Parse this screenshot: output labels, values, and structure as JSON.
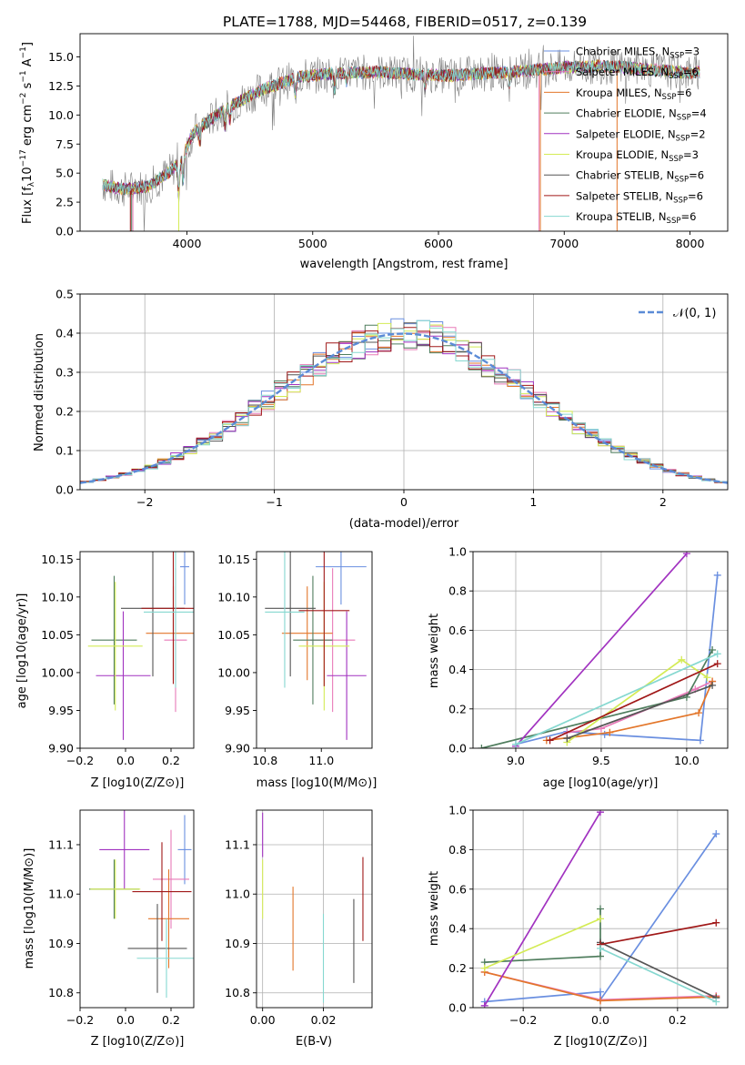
{
  "figure": {
    "title": "PLATE=1788, MJD=54468, FIBERID=0517, z=0.139"
  },
  "legend_models": [
    {
      "name": "Chabrier MILES",
      "nssp": "3",
      "color": "#6a8fe0"
    },
    {
      "name": "Salpeter MILES",
      "nssp": "6",
      "color": "#e87ab8"
    },
    {
      "name": "Kroupa MILES",
      "nssp": "6",
      "color": "#e3762a"
    },
    {
      "name": "Chabrier ELODIE",
      "nssp": "4",
      "color": "#4f7d5d"
    },
    {
      "name": "Salpeter ELODIE",
      "nssp": "2",
      "color": "#a132c0"
    },
    {
      "name": "Kroupa ELODIE",
      "nssp": "3",
      "color": "#d4eb55"
    },
    {
      "name": "Chabrier STELIB",
      "nssp": "6",
      "color": "#555555"
    },
    {
      "name": "Salpeter STELIB",
      "nssp": "6",
      "color": "#a01818"
    },
    {
      "name": "Kroupa STELIB",
      "nssp": "6",
      "color": "#86d8d0"
    }
  ],
  "chart_data": [
    {
      "id": "spectrum",
      "type": "line",
      "xlabel": "wavelength [Angstrom, rest frame]",
      "ylabel": "Flux [f_λ 10^-17 erg cm^-2 s^-1 A^-1]",
      "xlim": [
        3150,
        8300
      ],
      "ylim": [
        0,
        17
      ],
      "xticks": [
        4000,
        5000,
        6000,
        7000,
        8000
      ],
      "yticks": [
        0.0,
        2.5,
        5.0,
        7.5,
        10.0,
        12.5,
        15.0
      ],
      "ytick_labels": [
        "0.0",
        "2.5",
        "5.0",
        "7.5",
        "10.0",
        "12.5",
        "15.0"
      ],
      "grid": false,
      "legend_position": "upper right",
      "continuum": {
        "x": [
          3330,
          3500,
          3700,
          3850,
          3950,
          4050,
          4300,
          4600,
          4900,
          5200,
          5500,
          5800,
          6100,
          6400,
          6700,
          7000,
          7300,
          7600,
          8000,
          8080
        ],
        "y": [
          4.0,
          3.6,
          3.9,
          5.0,
          6.0,
          8.5,
          10.5,
          12.2,
          13.3,
          13.6,
          13.7,
          13.5,
          13.4,
          13.6,
          13.8,
          14.1,
          14.2,
          14.0,
          13.6,
          13.7
        ]
      }
    },
    {
      "id": "residual-histogram",
      "type": "bar",
      "xlabel": "(data-model)/error",
      "ylabel": "Normed distribution",
      "xlim": [
        -2.5,
        2.5
      ],
      "ylim": [
        0,
        0.5
      ],
      "xticks": [
        -2,
        -1,
        0,
        1,
        2
      ],
      "yticks": [
        0.0,
        0.1,
        0.2,
        0.3,
        0.4,
        0.5
      ],
      "ytick_labels": [
        "0.0",
        "0.1",
        "0.2",
        "0.3",
        "0.4",
        "0.5"
      ],
      "grid": true,
      "legend_label": "𝒩(0, 1)",
      "legend_position": "upper right",
      "bin_width": 0.1
    },
    {
      "id": "age-vs-Z",
      "type": "scatter",
      "xlabel": "Z [log10(Z/Z⊙)]",
      "ylabel": "age  [log10(age/yr)]",
      "xlim": [
        -0.2,
        0.3
      ],
      "ylim": [
        9.9,
        10.16
      ],
      "xticks": [
        -0.2,
        0.0,
        0.2
      ],
      "xtick_labels": [
        "−0.2",
        "0.0",
        "0.2"
      ],
      "yticks": [
        9.9,
        9.95,
        10.0,
        10.05,
        10.1,
        10.15
      ],
      "ytick_labels": [
        "9.90",
        "9.95",
        "10.00",
        "10.05",
        "10.10",
        "10.15"
      ],
      "grid": false,
      "points": [
        {
          "x": 0.26,
          "y": 10.14,
          "xerr": 0.02,
          "yerr": 0.05,
          "color": "#6a8fe0"
        },
        {
          "x": 0.22,
          "y": 10.043,
          "xerr": 0.05,
          "yerr": 0.095,
          "color": "#e87ab8"
        },
        {
          "x": 0.21,
          "y": 10.052,
          "xerr": 0.12,
          "yerr": 0.062,
          "color": "#e3762a"
        },
        {
          "x": -0.05,
          "y": 10.043,
          "xerr": 0.1,
          "yerr": 0.085,
          "color": "#4f7d5d"
        },
        {
          "x": -0.01,
          "y": 9.996,
          "xerr": 0.12,
          "yerr": 0.085,
          "color": "#a132c0"
        },
        {
          "x": -0.045,
          "y": 10.035,
          "xerr": 0.12,
          "yerr": 0.085,
          "color": "#d4eb55"
        },
        {
          "x": 0.12,
          "y": 10.085,
          "xerr": 0.14,
          "yerr": 0.09,
          "color": "#555555"
        },
        {
          "x": 0.21,
          "y": 10.085,
          "xerr": 0.14,
          "yerr": 0.1,
          "color": "#a01818"
        },
        {
          "x": 0.22,
          "y": 10.08,
          "xerr": 0.14,
          "yerr": 0.1,
          "color": "#86d8d0"
        }
      ]
    },
    {
      "id": "age-vs-mass",
      "type": "scatter",
      "xlabel": "mass [log10(M/M⊙)]",
      "ylabel": "",
      "xlim": [
        10.77,
        11.18
      ],
      "ylim": [
        9.9,
        10.16
      ],
      "xticks": [
        10.8,
        11.0
      ],
      "xtick_labels": [
        "10.8",
        "11.0"
      ],
      "yticks": [
        9.9,
        9.95,
        10.0,
        10.05,
        10.1,
        10.15
      ],
      "ytick_labels": [
        "9.90",
        "9.95",
        "10.00",
        "10.05",
        "10.10",
        "10.15"
      ],
      "grid": false,
      "points": [
        {
          "x": 11.07,
          "y": 10.14,
          "xerr": 0.09,
          "yerr": 0.05,
          "color": "#6a8fe0"
        },
        {
          "x": 11.04,
          "y": 10.043,
          "xerr": 0.08,
          "yerr": 0.095,
          "color": "#e87ab8"
        },
        {
          "x": 10.95,
          "y": 10.052,
          "xerr": 0.09,
          "yerr": 0.062,
          "color": "#e3762a"
        },
        {
          "x": 10.97,
          "y": 10.043,
          "xerr": 0.07,
          "yerr": 0.085,
          "color": "#4f7d5d"
        },
        {
          "x": 11.09,
          "y": 9.996,
          "xerr": 0.07,
          "yerr": 0.085,
          "color": "#a132c0"
        },
        {
          "x": 11.01,
          "y": 10.035,
          "xerr": 0.09,
          "yerr": 0.085,
          "color": "#d4eb55"
        },
        {
          "x": 10.89,
          "y": 10.085,
          "xerr": 0.09,
          "yerr": 0.09,
          "color": "#555555"
        },
        {
          "x": 11.01,
          "y": 10.082,
          "xerr": 0.09,
          "yerr": 0.1,
          "color": "#a01818"
        },
        {
          "x": 10.87,
          "y": 10.08,
          "xerr": 0.07,
          "yerr": 0.1,
          "color": "#86d8d0"
        }
      ]
    },
    {
      "id": "weight-vs-age",
      "type": "line",
      "xlabel": "age  [log10(age/yr)]",
      "ylabel": "mass weight",
      "xlim": [
        8.75,
        10.24
      ],
      "ylim": [
        0,
        1
      ],
      "xticks": [
        9.0,
        9.5,
        10.0
      ],
      "xtick_labels": [
        "9.0",
        "9.5",
        "10.0"
      ],
      "yticks": [
        0.0,
        0.2,
        0.4,
        0.6,
        0.8,
        1.0
      ],
      "ytick_labels": [
        "0.0",
        "0.2",
        "0.4",
        "0.6",
        "0.8",
        "1.0"
      ],
      "grid": true,
      "series": [
        {
          "color": "#6a8fe0",
          "x": [
            9.0,
            9.3,
            9.52,
            10.08,
            10.18
          ],
          "y": [
            0.02,
            0.085,
            0.07,
            0.04,
            0.88
          ]
        },
        {
          "color": "#e87ab8",
          "x": [
            9.3,
            9.5,
            10.05,
            10.15
          ],
          "y": [
            0.08,
            0.1,
            0.3,
            0.34
          ]
        },
        {
          "color": "#e3762a",
          "x": [
            9.18,
            9.55,
            10.07,
            10.15
          ],
          "y": [
            0.04,
            0.08,
            0.18,
            0.34
          ]
        },
        {
          "color": "#4f7d5d",
          "x": [
            8.8,
            10.0,
            10.15
          ],
          "y": [
            0.0,
            0.26,
            0.5
          ]
        },
        {
          "color": "#a132c0",
          "x": [
            9.0,
            10.0
          ],
          "y": [
            0.01,
            0.99
          ]
        },
        {
          "color": "#d4eb55",
          "x": [
            9.3,
            9.97,
            10.12
          ],
          "y": [
            0.03,
            0.45,
            0.36
          ]
        },
        {
          "color": "#555555",
          "x": [
            9.3,
            10.15
          ],
          "y": [
            0.05,
            0.32
          ]
        },
        {
          "color": "#a01818",
          "x": [
            9.2,
            10.18
          ],
          "y": [
            0.04,
            0.43
          ]
        },
        {
          "color": "#86d8d0",
          "x": [
            9.0,
            10.18
          ],
          "y": [
            0.02,
            0.48
          ]
        }
      ]
    },
    {
      "id": "mass-vs-Z",
      "type": "scatter",
      "xlabel": "Z [log10(Z/Z⊙)]",
      "ylabel": "mass [log10(M/M⊙)]",
      "xlim": [
        -0.2,
        0.3
      ],
      "ylim": [
        10.77,
        11.17
      ],
      "xticks": [
        -0.2,
        0.0,
        0.2
      ],
      "xtick_labels": [
        "−0.2",
        "0.0",
        "0.2"
      ],
      "yticks": [
        10.8,
        10.9,
        11.0,
        11.1
      ],
      "ytick_labels": [
        "10.8",
        "10.9",
        "11.0",
        "11.1"
      ],
      "grid": false,
      "points": [
        {
          "x": 0.26,
          "y": 11.09,
          "xerr": 0.03,
          "yerr": 0.07,
          "color": "#6a8fe0"
        },
        {
          "x": 0.2,
          "y": 11.03,
          "xerr": 0.08,
          "yerr": 0.1,
          "color": "#e87ab8"
        },
        {
          "x": 0.19,
          "y": 10.95,
          "xerr": 0.09,
          "yerr": 0.1,
          "color": "#e3762a"
        },
        {
          "x": -0.05,
          "y": 11.01,
          "xerr": 0.11,
          "yerr": 0.06,
          "color": "#4f7d5d"
        },
        {
          "x": -0.005,
          "y": 11.09,
          "xerr": 0.11,
          "yerr": 0.08,
          "color": "#a132c0"
        },
        {
          "x": -0.045,
          "y": 11.01,
          "xerr": 0.11,
          "yerr": 0.06,
          "color": "#d4eb55"
        },
        {
          "x": 0.14,
          "y": 10.89,
          "xerr": 0.13,
          "yerr": 0.09,
          "color": "#555555"
        },
        {
          "x": 0.16,
          "y": 11.005,
          "xerr": 0.13,
          "yerr": 0.1,
          "color": "#a01818"
        },
        {
          "x": 0.18,
          "y": 10.87,
          "xerr": 0.13,
          "yerr": 0.08,
          "color": "#86d8d0"
        }
      ]
    },
    {
      "id": "mass-vs-ebv",
      "type": "scatter",
      "xlabel": "E(B-V)",
      "ylabel": "",
      "xlim": [
        -0.002,
        0.036
      ],
      "ylim": [
        10.77,
        11.17
      ],
      "xticks": [
        0.0,
        0.02
      ],
      "xtick_labels": [
        "0.00",
        "0.02"
      ],
      "yticks": [
        10.8,
        10.9,
        11.0,
        11.1
      ],
      "ytick_labels": [
        "10.8",
        "10.9",
        "11.0",
        "11.1"
      ],
      "grid": true,
      "points": [
        {
          "x": 0.0,
          "y": 11.12,
          "xerr": 0,
          "yerr": 0.045,
          "color": "#a132c0"
        },
        {
          "x": 0.0,
          "y": 11.01,
          "xerr": 0,
          "yerr": 0.06,
          "color": "#d4eb55"
        },
        {
          "x": 0.01,
          "y": 10.93,
          "xerr": 0,
          "yerr": 0.085,
          "color": "#e3762a"
        },
        {
          "x": 0.02,
          "y": 10.87,
          "xerr": 0,
          "yerr": 0.09,
          "color": "#86d8d0"
        },
        {
          "x": 0.03,
          "y": 10.905,
          "xerr": 0,
          "yerr": 0.085,
          "color": "#555555"
        },
        {
          "x": 0.033,
          "y": 10.99,
          "xerr": 0,
          "yerr": 0.085,
          "color": "#a01818"
        }
      ]
    },
    {
      "id": "weight-vs-Z",
      "type": "line",
      "xlabel": "Z [log10(Z/Z⊙)]",
      "ylabel": "mass weight",
      "xlim": [
        -0.33,
        0.33
      ],
      "ylim": [
        0,
        1
      ],
      "xticks": [
        -0.2,
        0.0,
        0.2
      ],
      "xtick_labels": [
        "−0.2",
        "0.0",
        "0.2"
      ],
      "yticks": [
        0.0,
        0.2,
        0.4,
        0.6,
        0.8,
        1.0
      ],
      "ytick_labels": [
        "0.0",
        "0.2",
        "0.4",
        "0.6",
        "0.8",
        "1.0"
      ],
      "grid": true,
      "series": [
        {
          "color": "#6a8fe0",
          "x": [
            -0.3,
            0.0,
            0.0,
            0.3
          ],
          "y": [
            0.03,
            0.08,
            0.04,
            0.88
          ]
        },
        {
          "color": "#e87ab8",
          "x": [
            -0.3,
            0.0,
            0.3
          ],
          "y": [
            0.18,
            0.04,
            0.06
          ]
        },
        {
          "color": "#e3762a",
          "x": [
            -0.3,
            0.0,
            0.3
          ],
          "y": [
            0.18,
            0.035,
            0.055
          ]
        },
        {
          "color": "#4f7d5d",
          "x": [
            -0.3,
            0.0,
            0.0
          ],
          "y": [
            0.23,
            0.26,
            0.5
          ]
        },
        {
          "color": "#a132c0",
          "x": [
            -0.3,
            0.0
          ],
          "y": [
            0.01,
            0.99
          ]
        },
        {
          "color": "#d4eb55",
          "x": [
            -0.3,
            0.0
          ],
          "y": [
            0.2,
            0.45
          ]
        },
        {
          "color": "#555555",
          "x": [
            0.0,
            0.3
          ],
          "y": [
            0.33,
            0.05
          ]
        },
        {
          "color": "#a01818",
          "x": [
            0.0,
            0.3
          ],
          "y": [
            0.32,
            0.43
          ]
        },
        {
          "color": "#86d8d0",
          "x": [
            0.0,
            0.3
          ],
          "y": [
            0.3,
            0.03
          ]
        }
      ]
    }
  ]
}
